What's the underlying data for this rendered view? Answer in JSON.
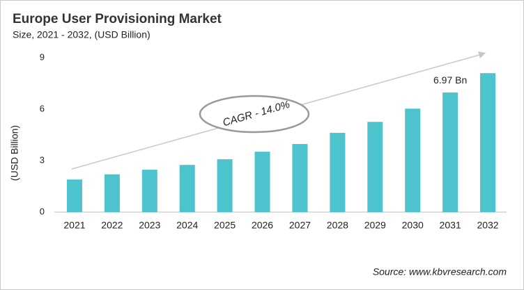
{
  "chart_data": {
    "type": "bar",
    "title": "Europe User Provisioning Market",
    "subtitle": "Size, 2021 - 2032, (USD Billion)",
    "y_label": "(USD Billion)",
    "annotation": "CAGR - 14.0%",
    "source": "Source: www.kbvresearch.com",
    "categories": [
      "2021",
      "2022",
      "2023",
      "2024",
      "2025",
      "2026",
      "2027",
      "2028",
      "2029",
      "2030",
      "2031",
      "2032"
    ],
    "values": [
      1.9,
      2.2,
      2.47,
      2.75,
      3.08,
      3.52,
      3.97,
      4.62,
      5.26,
      6.03,
      6.97,
      8.1
    ],
    "value_labels": [
      null,
      null,
      null,
      null,
      null,
      null,
      null,
      null,
      null,
      null,
      "6.97 Bn",
      null
    ],
    "color": "#4cc3cd",
    "ylim": [
      0,
      9
    ],
    "yticks": [
      0,
      3,
      6,
      9
    ],
    "grid": false
  }
}
